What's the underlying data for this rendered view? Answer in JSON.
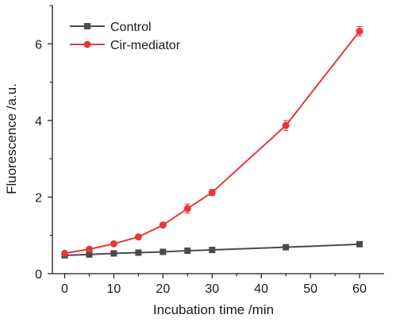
{
  "chart_data": {
    "type": "line",
    "xlabel": "Incubation time /min",
    "ylabel": "Fluorescence /a.u.",
    "xlim": [
      -2.5,
      65
    ],
    "ylim": [
      0,
      7
    ],
    "x_ticks": [
      0,
      10,
      20,
      30,
      40,
      50,
      60
    ],
    "y_ticks": [
      0,
      2,
      4,
      6
    ],
    "grid": false,
    "legend_position": "top-left",
    "series": [
      {
        "name": "Control",
        "marker": "square",
        "color": "#4a4a4a",
        "x": [
          0,
          5,
          10,
          15,
          20,
          25,
          30,
          45,
          60
        ],
        "y": [
          0.48,
          0.5,
          0.53,
          0.55,
          0.57,
          0.6,
          0.62,
          0.69,
          0.77
        ],
        "error": [
          0.02,
          0.02,
          0.02,
          0.02,
          0.02,
          0.02,
          0.02,
          0.03,
          0.03
        ]
      },
      {
        "name": "Cir-mediator",
        "marker": "circle",
        "color": "#e8373a",
        "x": [
          0,
          5,
          10,
          15,
          20,
          25,
          30,
          45,
          60
        ],
        "y": [
          0.53,
          0.64,
          0.78,
          0.96,
          1.27,
          1.7,
          2.12,
          3.87,
          6.33
        ],
        "error": [
          0.03,
          0.03,
          0.04,
          0.04,
          0.05,
          0.12,
          0.08,
          0.13,
          0.12
        ]
      }
    ]
  }
}
